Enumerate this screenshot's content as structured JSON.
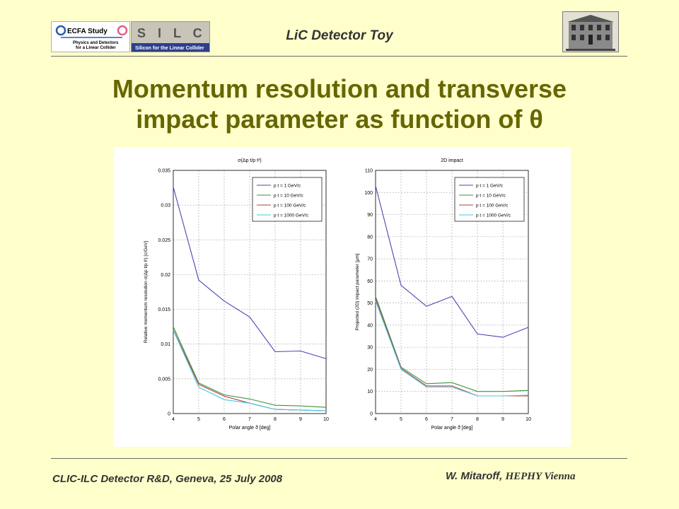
{
  "header": {
    "title": "LiC Detector Toy",
    "logo_ecfa_line1": "ECFA Study",
    "logo_ecfa_line2": "Physics and Detectors",
    "logo_ecfa_line3": "for a Linear Collider",
    "logo_silc_letters": "S I L C",
    "logo_silc_caption": "Silicon for the Linear Collider"
  },
  "slide": {
    "title_line1": "Momentum resolution and transverse",
    "title_line2": "impact parameter as function of θ"
  },
  "footer": {
    "event": "CLIC-ILC Detector R&D, Geneva, 25 July 2008",
    "author": "W. Mitaroff,",
    "institute": "HEPHY Vienna"
  },
  "legend_labels": [
    "p t = 1 GeV/c",
    "p t = 10 GeV/c",
    "p t = 100 GeV/c",
    "p t = 1000 GeV/c"
  ],
  "colors": {
    "pt1": "#4646b4",
    "pt10": "#3c963c",
    "pt100": "#b43c3c",
    "pt1000": "#46c8e6"
  },
  "chart_data": [
    {
      "type": "line",
      "title": "σ(Δp t/p t²)",
      "xlabel": "Polar angle ϑ [deg]",
      "ylabel": "Relative momentum resolution σ(Δp t/p t²) [c/GeV]",
      "x": [
        4,
        5,
        6,
        7,
        8,
        9,
        10
      ],
      "xlim": [
        4,
        10
      ],
      "ylim": [
        0,
        0.035
      ],
      "yticks": [
        0,
        0.005,
        0.01,
        0.015,
        0.02,
        0.025,
        0.03,
        0.035
      ],
      "ytick_labels": [
        "0",
        "0.005",
        "0.01",
        "0.015",
        "0.02",
        "0.025",
        "0.03",
        "0.035"
      ],
      "xticks": [
        4,
        5,
        6,
        7,
        8,
        9,
        10
      ],
      "grid": true,
      "legend_position": "top-right",
      "series": [
        {
          "name": "p t = 1 GeV/c",
          "values": [
            0.0326,
            0.0192,
            0.0162,
            0.0139,
            0.0089,
            0.009,
            0.0079
          ]
        },
        {
          "name": "p t = 10 GeV/c",
          "values": [
            0.0125,
            0.0044,
            0.0027,
            0.0021,
            0.0012,
            0.0011,
            0.0009
          ]
        },
        {
          "name": "p t = 100 GeV/c",
          "values": [
            0.0121,
            0.0042,
            0.0025,
            0.0015,
            0.0006,
            0.0005,
            0.0004
          ]
        },
        {
          "name": "p t = 1000 GeV/c",
          "values": [
            0.012,
            0.0038,
            0.002,
            0.0015,
            0.0006,
            0.0005,
            0.0004
          ]
        }
      ]
    },
    {
      "type": "line",
      "title": "2D impact",
      "xlabel": "Polar angle ϑ [deg]",
      "ylabel": "Projected (2D) impact parameter [μm]",
      "x": [
        4,
        5,
        6,
        7,
        8,
        9,
        10
      ],
      "xlim": [
        4,
        10
      ],
      "ylim": [
        0,
        110
      ],
      "yticks": [
        0,
        10,
        20,
        30,
        40,
        50,
        60,
        70,
        80,
        90,
        100,
        110
      ],
      "ytick_labels": [
        "0",
        "10",
        "20",
        "30",
        "40",
        "50",
        "60",
        "70",
        "80",
        "90",
        "100",
        "110"
      ],
      "xticks": [
        4,
        5,
        6,
        7,
        8,
        9,
        10
      ],
      "grid": true,
      "legend_position": "top-right",
      "series": [
        {
          "name": "p t = 1 GeV/c",
          "values": [
            103,
            58,
            48.5,
            53,
            36,
            34.5,
            39
          ]
        },
        {
          "name": "p t = 10 GeV/c",
          "values": [
            53,
            21,
            13.5,
            14,
            10,
            10,
            10.5
          ]
        },
        {
          "name": "p t = 100 GeV/c",
          "values": [
            52,
            20.5,
            12.5,
            12.5,
            8,
            8,
            8
          ]
        },
        {
          "name": "p t = 1000 GeV/c",
          "values": [
            51,
            20,
            12,
            12,
            8,
            8,
            8.3
          ]
        }
      ]
    }
  ]
}
